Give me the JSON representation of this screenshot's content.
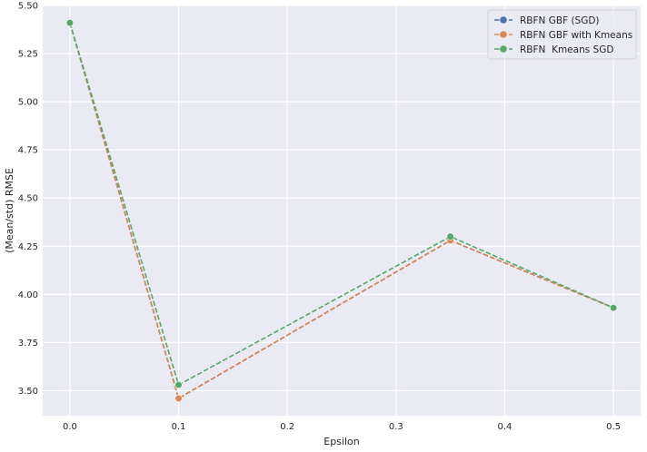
{
  "chart_data": {
    "type": "line",
    "xlabel": "Epsilon",
    "ylabel": "(Mean/std) RMSE",
    "xlim": [
      -0.025,
      0.525
    ],
    "ylim": [
      3.37,
      5.5
    ],
    "xticks": [
      0.0,
      0.1,
      0.2,
      0.3,
      0.4,
      0.5
    ],
    "xtick_labels": [
      "0.0",
      "0.1",
      "0.2",
      "0.3",
      "0.4",
      "0.5"
    ],
    "yticks": [
      3.5,
      3.75,
      4.0,
      4.25,
      4.5,
      4.75,
      5.0,
      5.25,
      5.5
    ],
    "ytick_labels": [
      "3.50",
      "3.75",
      "4.00",
      "4.25",
      "4.50",
      "4.75",
      "5.00",
      "5.25",
      "5.50"
    ],
    "grid": true,
    "legend_position": "top-right",
    "x": [
      0.0,
      0.1,
      0.35,
      0.5
    ],
    "series": [
      {
        "name": "RBFN GBF (SGD)",
        "color": "#4c72b0",
        "values": [
          5.41,
          3.46,
          4.28,
          3.93
        ]
      },
      {
        "name": "RBFN GBF with Kmeans",
        "color": "#dd8452",
        "values": [
          5.41,
          3.46,
          4.28,
          3.93
        ]
      },
      {
        "name": "RBFN  Kmeans SGD",
        "color": "#55a868",
        "values": [
          5.41,
          3.53,
          4.3,
          3.93
        ]
      }
    ]
  }
}
